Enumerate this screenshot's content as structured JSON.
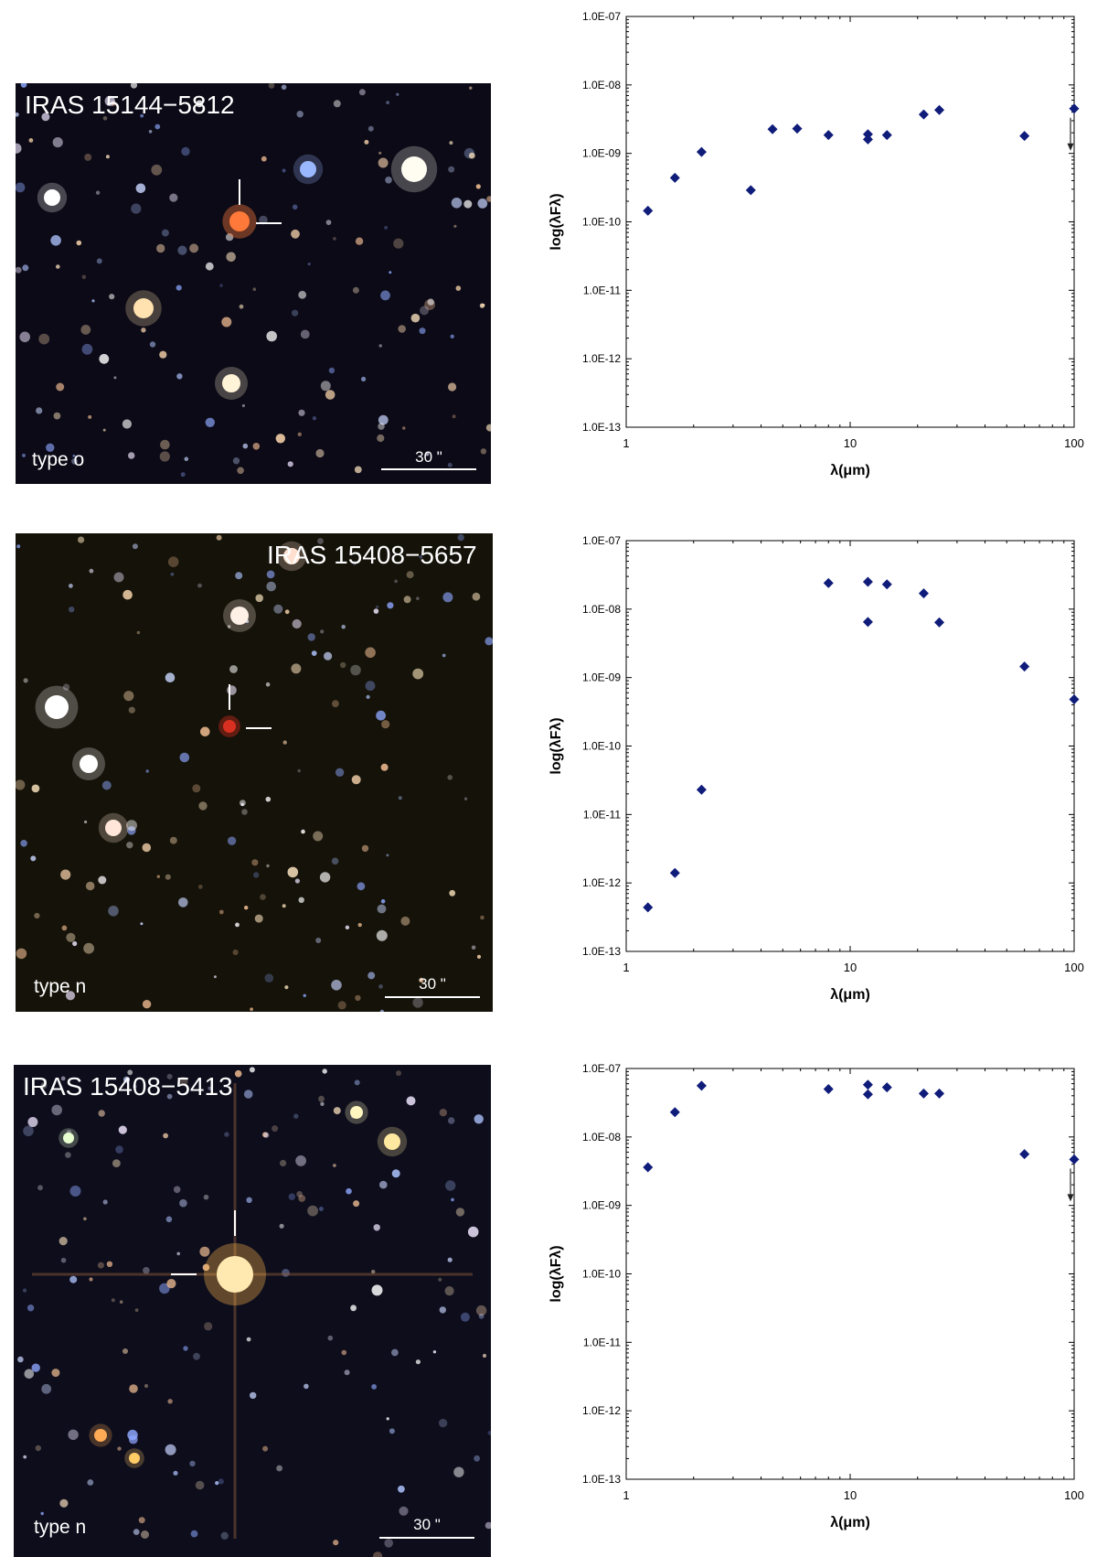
{
  "panels": [
    {
      "image": {
        "title": "IRAS 15144−5812",
        "type_label": "type o",
        "scale_label": "30 \"",
        "background": "#0b0a16"
      },
      "chart_data": {
        "type": "scatter",
        "xlabel": "λ(μm)",
        "ylabel": "log(λFλ)",
        "xscale": "log",
        "yscale": "log",
        "xlim": [
          1,
          100
        ],
        "ylim": [
          1e-13,
          1e-07
        ],
        "x_ticks": [
          "1",
          "10",
          "100"
        ],
        "y_ticks": [
          "1.0E-13",
          "1.0E-12",
          "1.0E-11",
          "1.0E-10",
          "1.0E-09",
          "1.0E-08",
          "1.0E-07"
        ],
        "marker_color": "#0f1c7a",
        "series": [
          {
            "points": [
              [
                1.25,
                1.45e-10
              ],
              [
                1.65,
                4.4e-10
              ],
              [
                2.17,
                1.05e-09
              ],
              [
                3.6,
                2.9e-10
              ],
              [
                4.5,
                2.25e-09
              ],
              [
                5.8,
                2.3e-09
              ],
              [
                8.0,
                1.85e-09
              ],
              [
                12.0,
                1.9e-09
              ],
              [
                12.0,
                1.6e-09
              ],
              [
                14.6,
                1.85e-09
              ],
              [
                21.3,
                3.7e-09
              ],
              [
                25.0,
                4.3e-09
              ],
              [
                60.0,
                1.8e-09
              ],
              [
                100.0,
                4.5e-09
              ]
            ]
          }
        ],
        "upper_limit_x": [
          100.0
        ]
      }
    },
    {
      "image": {
        "title": "IRAS 15408−5657",
        "type_label": "type n",
        "scale_label": "30 \"",
        "background": "#141209"
      },
      "chart_data": {
        "type": "scatter",
        "xlabel": "λ(μm)",
        "ylabel": "log(λFλ)",
        "xscale": "log",
        "yscale": "log",
        "xlim": [
          1,
          100
        ],
        "ylim": [
          1e-13,
          1e-07
        ],
        "x_ticks": [
          "1",
          "10",
          "100"
        ],
        "y_ticks": [
          "1.0E-13",
          "1.0E-12",
          "1.0E-11",
          "1.0E-10",
          "1.0E-09",
          "1.0E-08",
          "1.0E-07"
        ],
        "marker_color": "#0f1c7a",
        "series": [
          {
            "points": [
              [
                1.25,
                4.4e-13
              ],
              [
                1.65,
                1.4e-12
              ],
              [
                2.17,
                2.3e-11
              ],
              [
                8.0,
                2.4e-08
              ],
              [
                12.0,
                2.5e-08
              ],
              [
                12.0,
                6.5e-09
              ],
              [
                14.6,
                2.3e-08
              ],
              [
                21.3,
                1.7e-08
              ],
              [
                25.0,
                6.4e-09
              ],
              [
                60.0,
                1.45e-09
              ],
              [
                100.0,
                4.8e-10
              ]
            ]
          }
        ],
        "upper_limit_x": []
      }
    },
    {
      "image": {
        "title": "IRAS 15408−5413",
        "type_label": "type n",
        "scale_label": "30 \"",
        "background": "#0d0d1c"
      },
      "chart_data": {
        "type": "scatter",
        "xlabel": "λ(μm)",
        "ylabel": "log(λFλ)",
        "xscale": "log",
        "yscale": "log",
        "xlim": [
          1,
          100
        ],
        "ylim": [
          1e-13,
          1e-07
        ],
        "x_ticks": [
          "1",
          "10",
          "100"
        ],
        "y_ticks": [
          "1.0E-13",
          "1.0E-12",
          "1.0E-11",
          "1.0E-10",
          "1.0E-09",
          "1.0E-08",
          "1.0E-07"
        ],
        "marker_color": "#0f1c7a",
        "series": [
          {
            "points": [
              [
                1.25,
                3.6e-09
              ],
              [
                1.65,
                2.3e-08
              ],
              [
                2.17,
                5.6e-08
              ],
              [
                8.0,
                5e-08
              ],
              [
                12.0,
                5.8e-08
              ],
              [
                12.0,
                4.2e-08
              ],
              [
                14.6,
                5.3e-08
              ],
              [
                21.3,
                4.3e-08
              ],
              [
                25.0,
                4.3e-08
              ],
              [
                60.0,
                5.6e-09
              ],
              [
                100.0,
                4.7e-09
              ]
            ]
          }
        ],
        "upper_limit_x": [
          100.0
        ]
      }
    }
  ]
}
